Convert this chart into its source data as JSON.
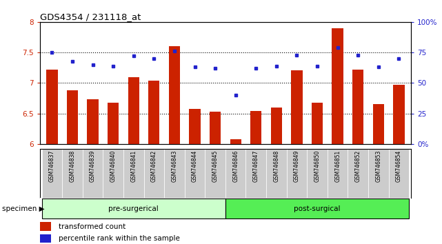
{
  "title": "GDS4354 / 231118_at",
  "samples": [
    "GSM746837",
    "GSM746838",
    "GSM746839",
    "GSM746840",
    "GSM746841",
    "GSM746842",
    "GSM746843",
    "GSM746844",
    "GSM746845",
    "GSM746846",
    "GSM746847",
    "GSM746848",
    "GSM746849",
    "GSM746850",
    "GSM746851",
    "GSM746852",
    "GSM746853",
    "GSM746854"
  ],
  "bar_values": [
    7.22,
    6.88,
    6.73,
    6.68,
    7.1,
    7.04,
    7.6,
    6.58,
    6.53,
    6.08,
    6.54,
    6.6,
    7.21,
    6.68,
    7.9,
    7.22,
    6.65,
    6.97
  ],
  "dot_values_pct": [
    75,
    68,
    65,
    64,
    72,
    70,
    76,
    63,
    62,
    40,
    62,
    64,
    73,
    64,
    79,
    73,
    63,
    70
  ],
  "pre_surgical_count": 9,
  "post_surgical_count": 9,
  "ylim_left": [
    6.0,
    8.0
  ],
  "ylim_right": [
    0,
    100
  ],
  "y_left_ticks": [
    6.0,
    6.5,
    7.0,
    7.5,
    8.0
  ],
  "y_right_ticks": [
    0,
    25,
    50,
    75,
    100
  ],
  "bar_color": "#cc2200",
  "dot_color": "#2222cc",
  "pre_color": "#ccffcc",
  "post_color": "#55ee55",
  "legend_bar": "transformed count",
  "legend_dot": "percentile rank within the sample",
  "tick_area_color": "#cccccc",
  "bg_color": "#ffffff",
  "specimen_label": "specimen",
  "pre_label": "pre-surgerical",
  "post_label": "post-surgical"
}
